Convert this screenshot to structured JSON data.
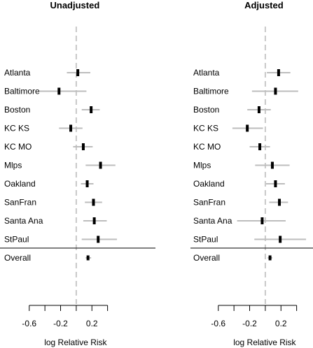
{
  "chart_data": [
    {
      "type": "forest",
      "title": "Unadjusted",
      "xlabel": "log Relative Risk",
      "xlim": [
        -0.75,
        0.6
      ],
      "xticks": [
        -0.6,
        -0.4,
        -0.2,
        0.0,
        0.2,
        0.4
      ],
      "xtick_labels": [
        "-0.6",
        "",
        "-0.2",
        "",
        "0.2",
        ""
      ],
      "reference_line": 0,
      "rows": [
        {
          "label": "Atlanta",
          "estimate": 0.02,
          "lower": -0.12,
          "upper": 0.18
        },
        {
          "label": "Baltimore",
          "estimate": -0.22,
          "lower": -0.47,
          "upper": 0.13
        },
        {
          "label": "Boston",
          "estimate": 0.19,
          "lower": 0.07,
          "upper": 0.3
        },
        {
          "label": "KC KS",
          "estimate": -0.07,
          "lower": -0.22,
          "upper": 0.08
        },
        {
          "label": "KC MO",
          "estimate": 0.09,
          "lower": -0.04,
          "upper": 0.21
        },
        {
          "label": "Mlps",
          "estimate": 0.31,
          "lower": 0.12,
          "upper": 0.5
        },
        {
          "label": "Oakland",
          "estimate": 0.14,
          "lower": 0.06,
          "upper": 0.22
        },
        {
          "label": "SanFran",
          "estimate": 0.22,
          "lower": 0.11,
          "upper": 0.33
        },
        {
          "label": "Santa Ana",
          "estimate": 0.23,
          "lower": 0.09,
          "upper": 0.39
        },
        {
          "label": "StPaul",
          "estimate": 0.28,
          "lower": 0.07,
          "upper": 0.52
        }
      ],
      "overall": {
        "label": "Overall",
        "estimate": 0.15,
        "lower": 0.12,
        "upper": 0.19
      }
    },
    {
      "type": "forest",
      "title": "Adjusted",
      "xlabel": "log Relative Risk",
      "xlim": [
        -0.75,
        0.6
      ],
      "xticks": [
        -0.6,
        -0.4,
        -0.2,
        0.0,
        0.2,
        0.4
      ],
      "xtick_labels": [
        "-0.6",
        "",
        "-0.2",
        "",
        "0.2",
        ""
      ],
      "reference_line": 0,
      "rows": [
        {
          "label": "Atlanta",
          "estimate": 0.17,
          "lower": 0.02,
          "upper": 0.32
        },
        {
          "label": "Baltimore",
          "estimate": 0.13,
          "lower": -0.17,
          "upper": 0.42
        },
        {
          "label": "Boston",
          "estimate": -0.08,
          "lower": -0.23,
          "upper": 0.07
        },
        {
          "label": "KC KS",
          "estimate": -0.23,
          "lower": -0.42,
          "upper": -0.03
        },
        {
          "label": "KC MO",
          "estimate": -0.07,
          "lower": -0.2,
          "upper": 0.06
        },
        {
          "label": "Mlps",
          "estimate": 0.09,
          "lower": -0.13,
          "upper": 0.31
        },
        {
          "label": "Oakland",
          "estimate": 0.13,
          "lower": 0.01,
          "upper": 0.25
        },
        {
          "label": "SanFran",
          "estimate": 0.18,
          "lower": 0.05,
          "upper": 0.29
        },
        {
          "label": "Santa Ana",
          "estimate": -0.04,
          "lower": -0.36,
          "upper": 0.26
        },
        {
          "label": "StPaul",
          "estimate": 0.19,
          "lower": -0.14,
          "upper": 0.52
        }
      ],
      "overall": {
        "label": "Overall",
        "estimate": 0.06,
        "lower": 0.03,
        "upper": 0.09
      }
    }
  ],
  "colors": {
    "ci_line": "#bdbdbd",
    "estimate_mark": "#000000",
    "reference_line": "#c8c8c8",
    "axis": "#000000",
    "separator": "#000000"
  }
}
